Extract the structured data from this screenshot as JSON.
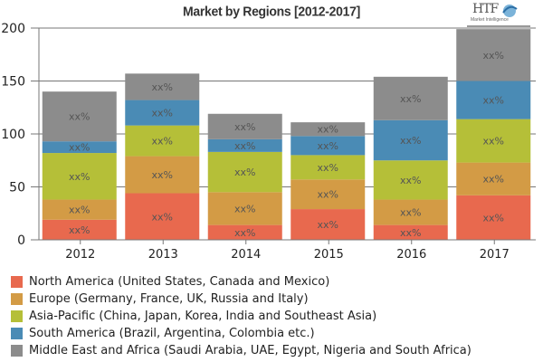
{
  "chart_data": {
    "type": "bar",
    "stacked": true,
    "title": "Market by Regions [2012-2017]",
    "xlabel": "",
    "ylabel": "",
    "ylim": [
      0,
      200
    ],
    "yticks": [
      0,
      50,
      100,
      150,
      200
    ],
    "grid": true,
    "legend_position": "bottom",
    "categories": [
      "2012",
      "2013",
      "2014",
      "2015",
      "2016",
      "2017"
    ],
    "segment_label": "xx%",
    "series": [
      {
        "name": "North America (United States, Canada and Mexico)",
        "color": "#e8694e",
        "values": [
          19,
          44,
          14,
          29,
          14,
          42
        ]
      },
      {
        "name": "Europe (Germany, France, UK, Russia and Italy)",
        "color": "#d39b45",
        "values": [
          19,
          35,
          31,
          28,
          24,
          31
        ]
      },
      {
        "name": "Asia-Pacific (China, Japan, Korea, India and Southeast Asia)",
        "color": "#b5bf38",
        "values": [
          44,
          29,
          38,
          23,
          37,
          41
        ]
      },
      {
        "name": "South America (Brazil, Argentina, Colombia etc.)",
        "color": "#4a8bb5",
        "values": [
          11,
          24,
          12,
          18,
          38,
          36
        ]
      },
      {
        "name": "Middle East and Africa (Saudi Arabia, UAE, Egypt, Nigeria and South Africa)",
        "color": "#8c8c8c",
        "values": [
          47,
          25,
          24,
          13,
          41,
          49
        ]
      }
    ],
    "totals": [
      140,
      157,
      119,
      111,
      154,
      199
    ]
  },
  "logo": {
    "text": "HTF",
    "subtext": "Market Intelligence"
  }
}
